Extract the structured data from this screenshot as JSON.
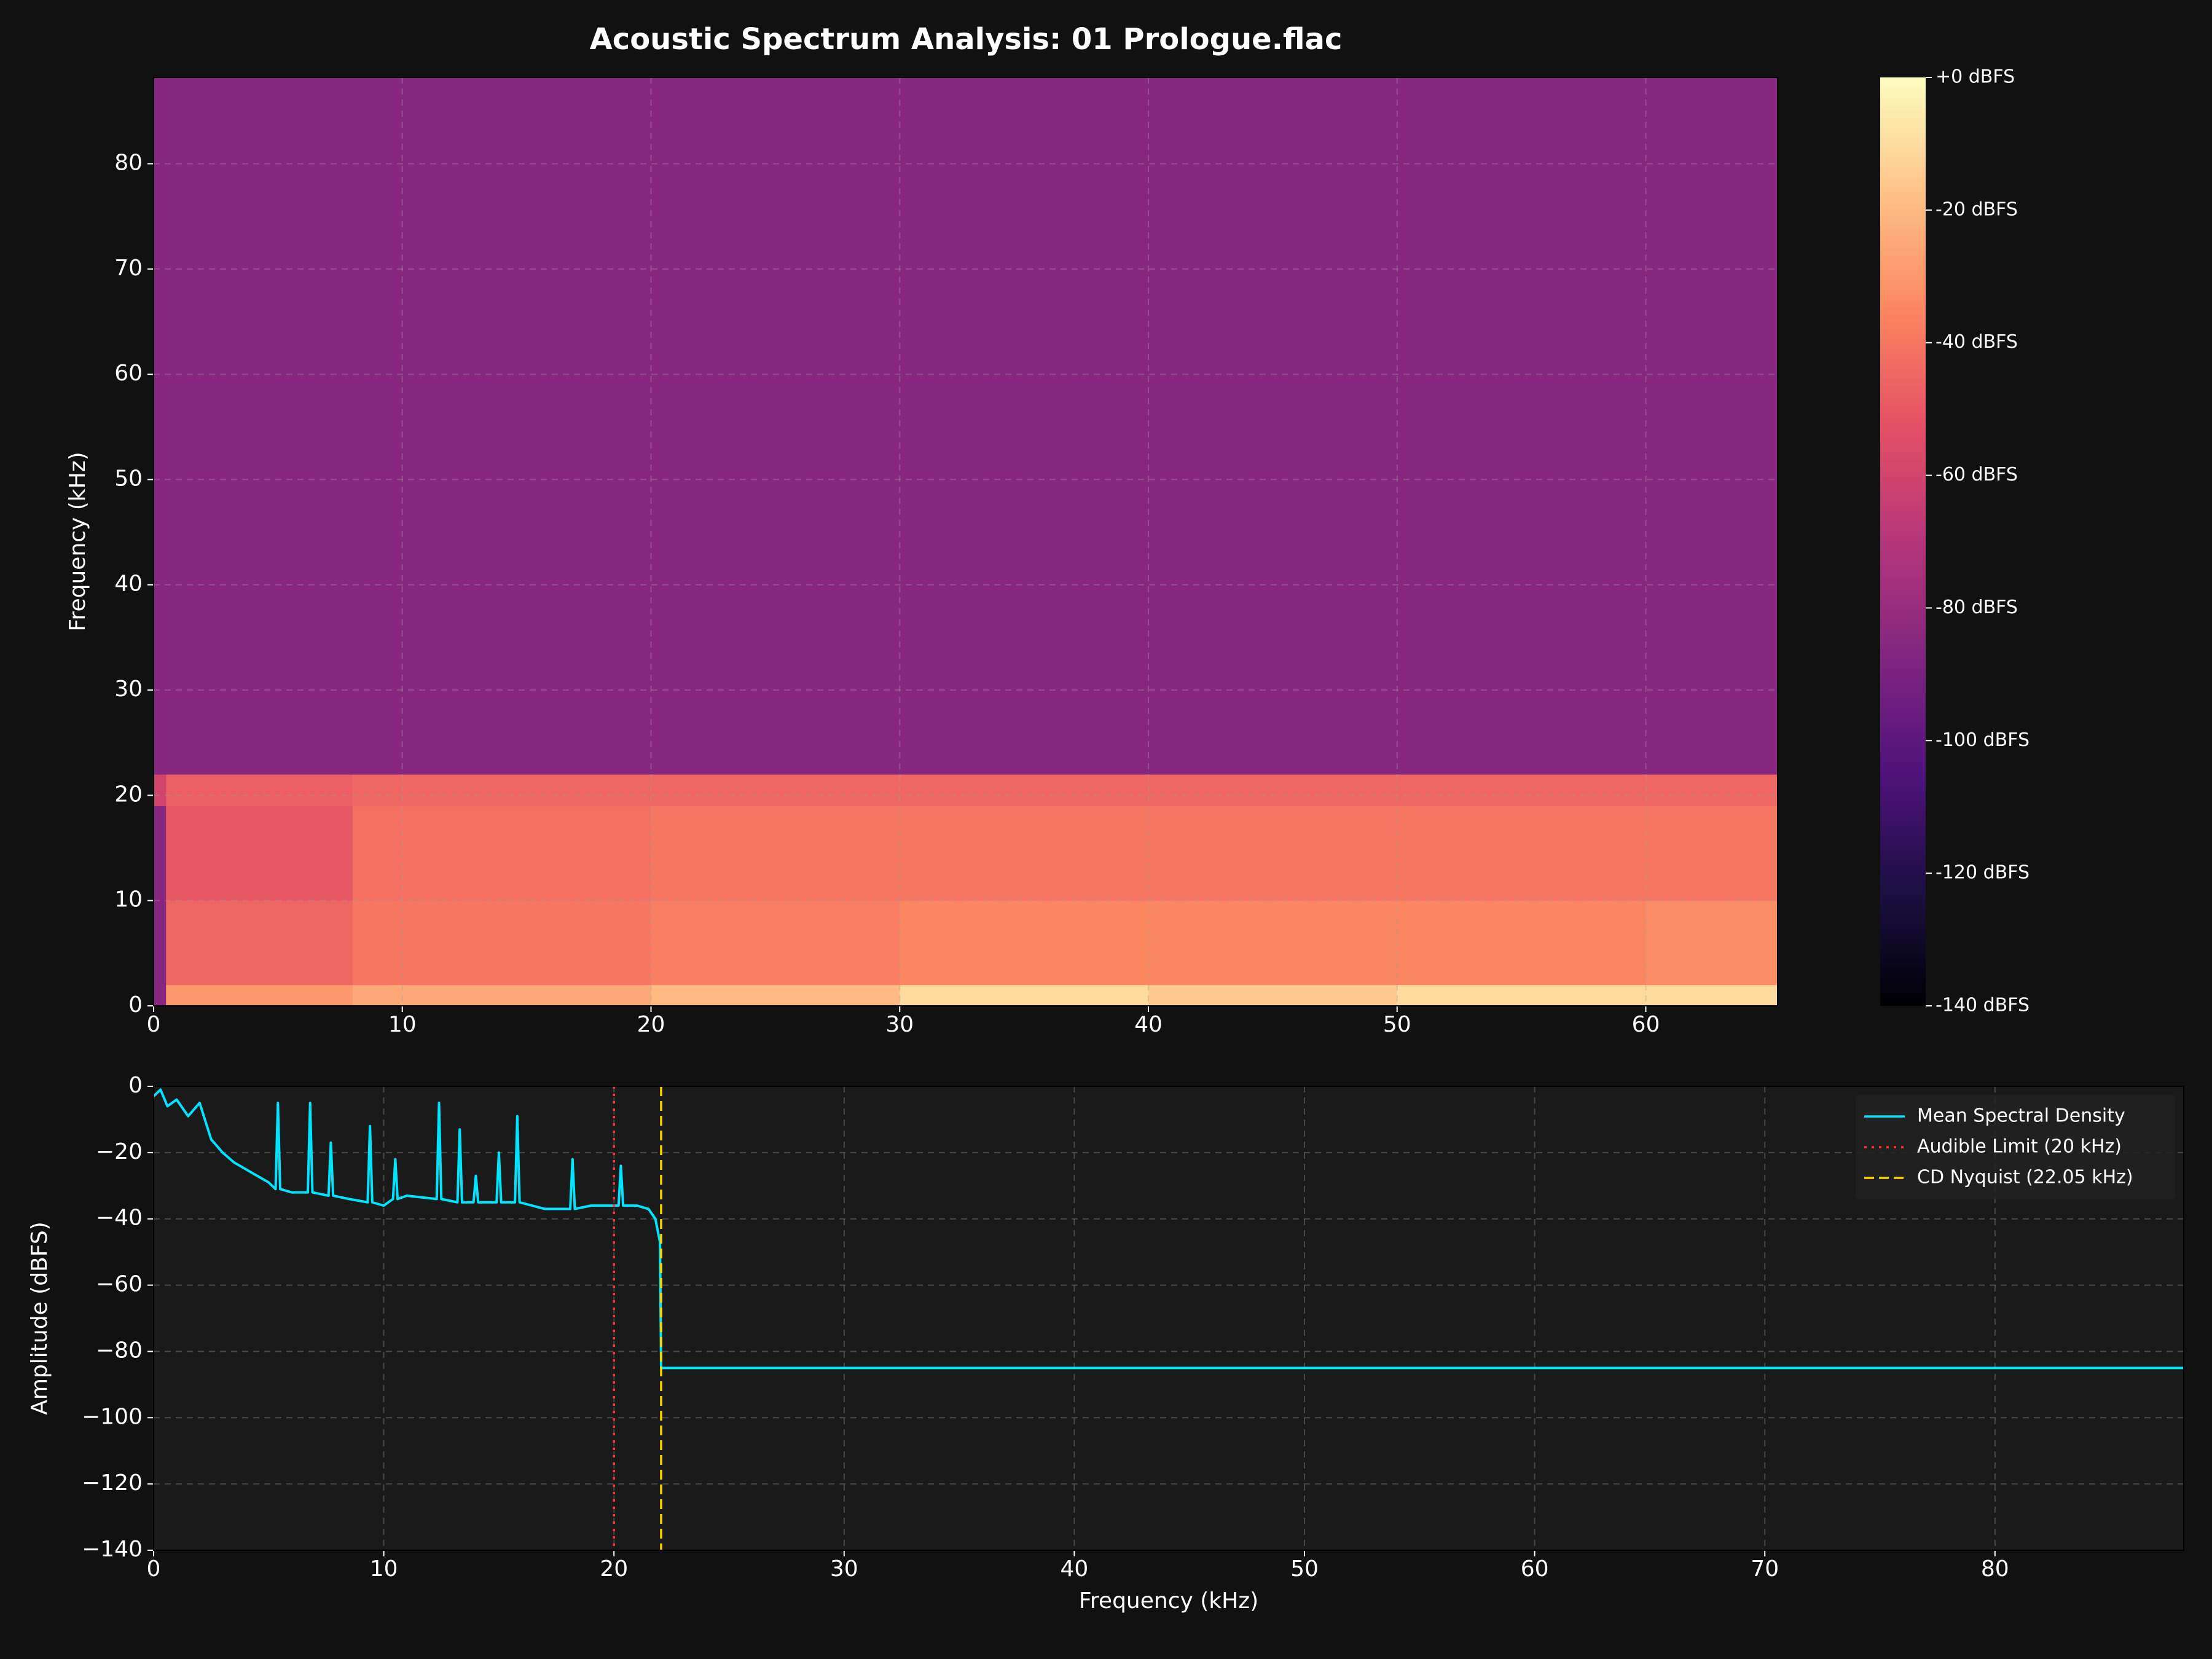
{
  "chart_data": [
    {
      "type": "heatmap",
      "title": "Acoustic Spectrum Analysis: 01 Prologue.flac",
      "y_label": "Frequency (kHz)",
      "x_edges": [
        0,
        0.5,
        8,
        20,
        30,
        40,
        50,
        60,
        65.3
      ],
      "y_edges": [
        0,
        2,
        10,
        19,
        22,
        88.2
      ],
      "values": [
        [
          -85,
          -30,
          -25,
          -20,
          -10,
          -15,
          -10,
          -10
        ],
        [
          -85,
          -45,
          -40,
          -38,
          -35,
          -35,
          -35,
          -33
        ],
        [
          -85,
          -50,
          -42,
          -40,
          -40,
          -40,
          -40,
          -40
        ],
        [
          -60,
          -48,
          -45,
          -45,
          -45,
          -45,
          -45,
          -45
        ],
        [
          -85,
          -85,
          -85,
          -85,
          -85,
          -85,
          -85,
          -85
        ]
      ],
      "xlim": [
        0,
        65.3
      ],
      "xticks": [
        0,
        10,
        20,
        30,
        40,
        50,
        60
      ],
      "ylim": [
        0,
        88.2
      ],
      "yticks": [
        0,
        10,
        20,
        30,
        40,
        50,
        60,
        70,
        80
      ],
      "grid": true,
      "clim": [
        -140,
        0
      ],
      "cticks": [
        {
          "value": 0,
          "label": "+0 dBFS"
        },
        {
          "value": -20,
          "label": "-20 dBFS"
        },
        {
          "value": -40,
          "label": "-40 dBFS"
        },
        {
          "value": -60,
          "label": "-60 dBFS"
        },
        {
          "value": -80,
          "label": "-80 dBFS"
        },
        {
          "value": -100,
          "label": "-100 dBFS"
        },
        {
          "value": -120,
          "label": "-120 dBFS"
        },
        {
          "value": -140,
          "label": "-140 dBFS"
        }
      ],
      "colormap": [
        "#000004",
        "#1c1044",
        "#4f127b",
        "#812581",
        "#b5367a",
        "#e55064",
        "#fb8761",
        "#fec287",
        "#fcfdbf"
      ]
    },
    {
      "type": "line",
      "x_label": "Frequency (kHz)",
      "y_label": "Amplitude (dBFS)",
      "x": [
        0,
        0.3,
        0.6,
        1,
        1.5,
        2,
        2.5,
        3,
        3.5,
        4,
        4.5,
        5,
        5.3,
        5.4,
        5.5,
        6,
        6.7,
        6.8,
        6.9,
        7.6,
        7.7,
        7.8,
        8.5,
        9.3,
        9.4,
        9.5,
        10,
        10.4,
        10.5,
        10.6,
        11,
        12.3,
        12.4,
        12.5,
        13.2,
        13.3,
        13.4,
        13.9,
        14.0,
        14.1,
        14.9,
        15.0,
        15.1,
        15.7,
        15.8,
        15.9,
        17,
        18.1,
        18.2,
        18.3,
        19,
        20.2,
        20.3,
        20.4,
        21,
        21.5,
        21.8,
        22,
        22.05,
        88.2
      ],
      "series": [
        {
          "name": "Mean Spectral Density",
          "color": "#00e5ff",
          "values": [
            -3,
            -1,
            -6,
            -4,
            -9,
            -5,
            -16,
            -20,
            -23,
            -25,
            -27,
            -29,
            -31,
            -5,
            -31,
            -32,
            -32,
            -5,
            -32,
            -33,
            -17,
            -33,
            -34,
            -35,
            -12,
            -35,
            -36,
            -34,
            -22,
            -34,
            -33,
            -34,
            -5,
            -34,
            -35,
            -13,
            -35,
            -35,
            -27,
            -35,
            -35,
            -20,
            -35,
            -35,
            -9,
            -35,
            -37,
            -37,
            -22,
            -37,
            -36,
            -36,
            -24,
            -36,
            -36,
            -37,
            -40,
            -47,
            -85,
            -85
          ]
        }
      ],
      "vlines": [
        {
          "name": "Audible Limit (20 kHz)",
          "x": 20,
          "color": "#ff3333",
          "style": "dotted"
        },
        {
          "name": "CD Nyquist (22.05 kHz)",
          "x": 22.05,
          "color": "#ffd700",
          "style": "dashed"
        }
      ],
      "xlim": [
        0,
        88.2
      ],
      "xticks": [
        0,
        10,
        20,
        30,
        40,
        50,
        60,
        70,
        80
      ],
      "ylim": [
        -140,
        0
      ],
      "yticks": [
        {
          "value": -140,
          "label": "−140"
        },
        {
          "value": -120,
          "label": "−120"
        },
        {
          "value": -100,
          "label": "−100"
        },
        {
          "value": -80,
          "label": "−80"
        },
        {
          "value": -60,
          "label": "−60"
        },
        {
          "value": -40,
          "label": "−40"
        },
        {
          "value": -20,
          "label": "−20"
        },
        0
      ],
      "grid": true,
      "legend": "upper right"
    }
  ]
}
